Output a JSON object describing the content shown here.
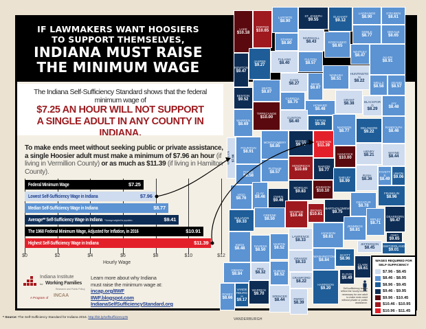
{
  "header": {
    "line1": "IF LAWMAKERS WANT HOOSIERS",
    "line2": "TO SUPPORT THEMSELVES,",
    "line3": "INDIANA MUST RAISE",
    "line4": "THE MINIMUM WAGE"
  },
  "subhead": {
    "intro": "The Indiana Self-Sufficiency Standard shows that the federal minimum wage of",
    "emph1": "$7.25 AN HOUR WILL NOT SUPPORT",
    "emph2": "A SINGLE ADULT IN ANY COUNTY IN INDIANA."
  },
  "intro": {
    "p1": "To make ends meet without seeking public or private assistance, a single Hoosier adult must make a minimum of $7.96 an hour",
    "p2": " (if living in Vermillion County)",
    "p3": " or as much as $11.39",
    "p4": " (if living in Hamilton County)."
  },
  "chart_data": {
    "type": "bar",
    "orientation": "horizontal",
    "categories": [
      "Federal Minimum Wage",
      "Lowest Self-Sufficiency Wage in Indiana",
      "Median Self-Sufficiency Wage in Indiana",
      "Average** Self-Sufficiency Wage in Indiana",
      "The 1968 Federal Minimum Wage, Adjusted for Inflation, in 2016",
      "Highest Self-Sufficiency Wage in Indiana"
    ],
    "values": [
      7.25,
      7.96,
      8.77,
      9.41,
      10.91,
      11.39
    ],
    "value_labels": [
      "$7.25",
      "$7.96",
      "$8.77",
      "$9.41",
      "$10.91",
      "$11.39"
    ],
    "colors": [
      "#000000",
      "#cfdcef",
      "#5b93d3",
      "#0e2d55",
      "#000000",
      "#e3202a"
    ],
    "label_colors": [
      "#ffffff",
      "#1d3f8f",
      "#ffffff",
      "#ffffff",
      "#ffffff",
      "#ffffff"
    ],
    "note": "**Average weighted for population",
    "xlabel": "Hourly Wage",
    "xlim": [
      0,
      12
    ],
    "xticks": [
      "$0",
      "$2",
      "$4",
      "$6",
      "$8",
      "$10",
      "$12"
    ],
    "grid": true
  },
  "footer": {
    "org1": "Indiana Institute",
    "org2": "for",
    "org3": "Working Families",
    "org4": "Research and Public Policy",
    "program": "A Program of",
    "program_org": "INCAA",
    "learn1": "Learn more about why Indiana",
    "learn2": "must raise the minimum wage at:",
    "links": [
      "incap.org/IIWF",
      "IIWF.blogspot.com",
      "IndianaSelfSufficiencyStandard.org"
    ],
    "source_label": "* Source:",
    "source_text": " The Self-Sufficiency Standard for Indiana 2016. ",
    "source_link": "http://bit.ly/selfsufficiencyIN"
  },
  "map": {
    "legend_title1": "WAGES REQUIRED FOR",
    "legend_title2": "SELF-SUFFICIENCY",
    "bins": [
      {
        "label": "$7.96 - $8.45",
        "color": "#cfdcef"
      },
      {
        "label": "$8.46 - $8.95",
        "color": "#5b93d3"
      },
      {
        "label": "$8.96 - $9.45",
        "color": "#1e5d98"
      },
      {
        "label": "$9.46 - $9.95",
        "color": "#0e2d55"
      },
      {
        "label": "$9.96 - $10.45",
        "color": "#5a0a0e"
      },
      {
        "label": "$10.46 - $10.95",
        "color": "#9e1a1f"
      },
      {
        "label": "$10.96 - $11.45",
        "color": "#e3202a"
      }
    ],
    "note": "Self-sufficiency wages reflect the hourly income necessary for one adult to make ends meet without private or public assistance.",
    "city_label": "VANDERBURGH",
    "counties": [
      {
        "name": "LAKE",
        "value": "$10.18"
      },
      {
        "name": "PORTER",
        "value": "$10.65"
      },
      {
        "name": "LAPORTE",
        "value": "$8.90"
      },
      {
        "name": "ST. JOSEPH",
        "value": "$9.55"
      },
      {
        "name": "ELKHART",
        "value": "$9.12"
      },
      {
        "name": "LAGRANGE",
        "value": "$8.90"
      },
      {
        "name": "STEUBEN",
        "value": "$8.61"
      },
      {
        "name": "STARKE",
        "value": "$8.80"
      },
      {
        "name": "MARSHALL",
        "value": "$8.43"
      },
      {
        "name": "KOSCIUSKO",
        "value": "$8.65"
      },
      {
        "name": "NOBLE",
        "value": "$8.77"
      },
      {
        "name": "DEKALB",
        "value": "$8.65"
      },
      {
        "name": "NEWTON",
        "value": "$9.47"
      },
      {
        "name": "JASPER",
        "value": "$9.27"
      },
      {
        "name": "PULASKI",
        "value": "$8.40"
      },
      {
        "name": "FULTON",
        "value": "$8.57"
      },
      {
        "name": "WHITLEY",
        "value": "$8.47"
      },
      {
        "name": "ALLEN",
        "value": "$8.91"
      },
      {
        "name": "BENTON",
        "value": "$9.52"
      },
      {
        "name": "WHITE",
        "value": "$8.87"
      },
      {
        "name": "CASS",
        "value": "$8.27"
      },
      {
        "name": "MIAMI",
        "value": "$8.87"
      },
      {
        "name": "WABASH",
        "value": "$8.51"
      },
      {
        "name": "HUNTINGTON",
        "value": "$8.22"
      },
      {
        "name": "WELLS",
        "value": "$8.58"
      },
      {
        "name": "ADAMS",
        "value": "$8.57"
      },
      {
        "name": "WARREN",
        "value": "$8.69"
      },
      {
        "name": "CARROLL",
        "value": "$8.75"
      },
      {
        "name": "HOWARD",
        "value": "$8.48"
      },
      {
        "name": "TIPPECANOE",
        "value": "$10.00"
      },
      {
        "name": "GRANT",
        "value": "$8.38"
      },
      {
        "name": "BLACKFORD",
        "value": "$8.29"
      },
      {
        "name": "JAY",
        "value": "$8.48"
      },
      {
        "name": "FOUNTAIN",
        "value": "$8.91"
      },
      {
        "name": "CLINTON",
        "value": "$8.40"
      },
      {
        "name": "TIPTON",
        "value": "$9.06"
      },
      {
        "name": "MADISON",
        "value": "$8.77"
      },
      {
        "name": "DELAWARE",
        "value": "$9.22"
      },
      {
        "name": "RANDOLPH",
        "value": "$8.46"
      },
      {
        "name": "VERMILLION",
        "value": "$7.96"
      },
      {
        "name": "MONTGOMERY",
        "value": "$8.85"
      },
      {
        "name": "BOONE",
        "value": "$9.77"
      },
      {
        "name": "HAMILTON",
        "value": "$11.39"
      },
      {
        "name": "HENRY",
        "value": "$8.21"
      },
      {
        "name": "WAYNE",
        "value": "$8.44"
      },
      {
        "name": "PARKE",
        "value": "$8.58"
      },
      {
        "name": "PUTNAM",
        "value": "$8.57"
      },
      {
        "name": "HENDRICKS",
        "value": "$10.69"
      },
      {
        "name": "MARION",
        "value": "$9.77"
      },
      {
        "name": "HANCOCK",
        "value": "$10.00"
      },
      {
        "name": "RUSH",
        "value": "$8.36"
      },
      {
        "name": "FAYETTE",
        "value": "$8.49"
      },
      {
        "name": "UNION",
        "value": "$9.06"
      },
      {
        "name": "VIGO",
        "value": "$8.76"
      },
      {
        "name": "CLAY",
        "value": "$8.46"
      },
      {
        "name": "OWEN",
        "value": "$9.46"
      },
      {
        "name": "MORGAN",
        "value": "$9.83"
      },
      {
        "name": "JOHNSON",
        "value": "$10.10"
      },
      {
        "name": "SHELBY",
        "value": "$8.99"
      },
      {
        "name": "FRANKLIN",
        "value": "$8.96"
      },
      {
        "name": "SULLIVAN",
        "value": "$9.33"
      },
      {
        "name": "GREENE",
        "value": "$8.50"
      },
      {
        "name": "MONROE",
        "value": "$10.48"
      },
      {
        "name": "BROWN",
        "value": "$10.61"
      },
      {
        "name": "BARTHOLOMEW",
        "value": "$9.75"
      },
      {
        "name": "DECATUR",
        "value": "$8.78"
      },
      {
        "name": "DEARBORN",
        "value": "$9.47"
      },
      {
        "name": "KNOX",
        "value": "$8.48"
      },
      {
        "name": "DAVIESS",
        "value": "$8.50"
      },
      {
        "name": "MARTIN",
        "value": "$8.52"
      },
      {
        "name": "LAWRENCE",
        "value": "$8.33"
      },
      {
        "name": "JACKSON",
        "value": "$8.61"
      },
      {
        "name": "JENNINGS",
        "value": "$8.81"
      },
      {
        "name": "RIPLEY",
        "value": "$8.71"
      },
      {
        "name": "OHIO",
        "value": "$9.65"
      },
      {
        "name": "SWITZERLAND",
        "value": "$9.01"
      },
      {
        "name": "GIBSON",
        "value": "$8.84"
      },
      {
        "name": "PIKE",
        "value": "$8.32"
      },
      {
        "name": "DUBOIS",
        "value": "$8.52"
      },
      {
        "name": "ORANGE",
        "value": "$8.33"
      },
      {
        "name": "WASHINGTON",
        "value": "$8.84"
      },
      {
        "name": "JEFFERSON",
        "value": "$8.45"
      },
      {
        "name": "SCOTT",
        "value": "$8.96"
      },
      {
        "name": "POSEY",
        "value": "$8.66"
      },
      {
        "name": "VANDERBURGH",
        "value": "$9.17"
      },
      {
        "name": "WARRICK",
        "value": "$9.70"
      },
      {
        "name": "SPENCER",
        "value": "$8.44"
      },
      {
        "name": "CRAWFORD",
        "value": "$8.22"
      },
      {
        "name": "PERRY",
        "value": "$8.39"
      },
      {
        "name": "HARRISON",
        "value": "$9.20"
      },
      {
        "name": "FLOYD",
        "value": "$9.49"
      },
      {
        "name": "CLARK",
        "value": "$9.61"
      }
    ]
  }
}
